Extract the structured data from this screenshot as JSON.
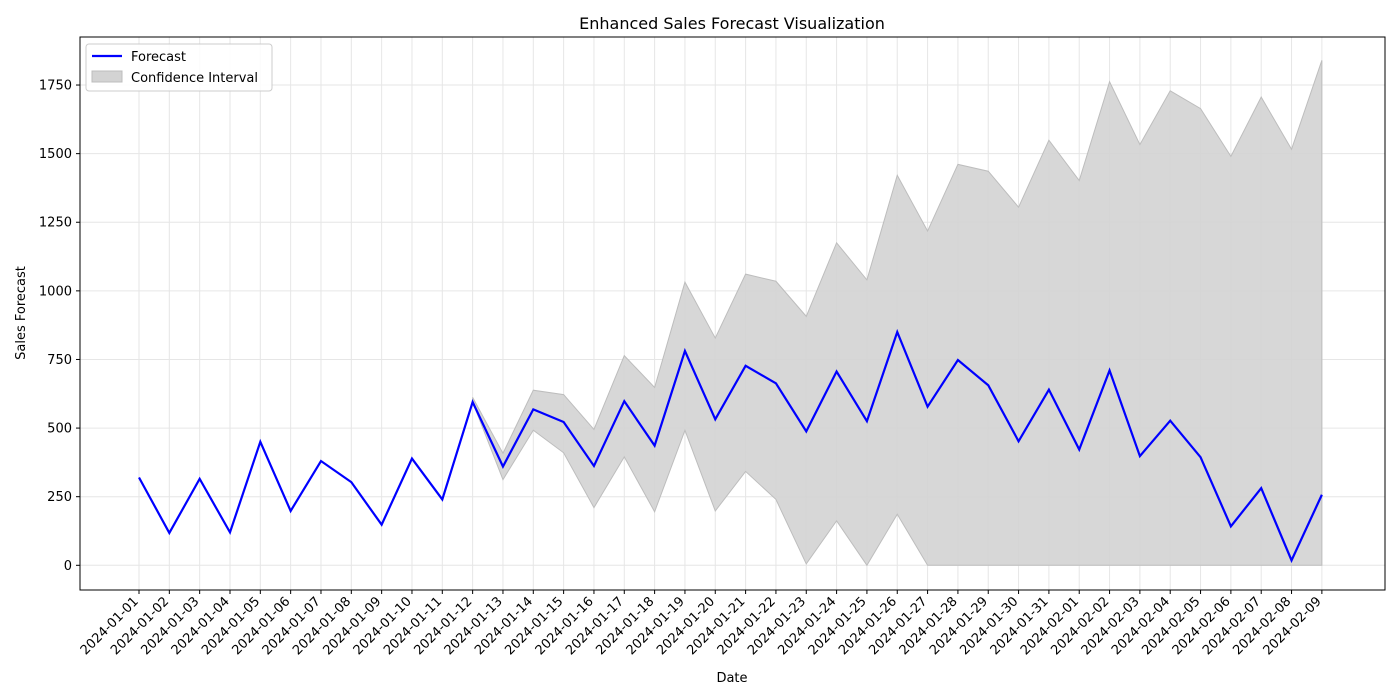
{
  "chart_data": {
    "type": "line",
    "title": "Enhanced Sales Forecast Visualization",
    "xlabel": "Date",
    "ylabel": "Sales Forecast",
    "ylim": [
      -90,
      1925
    ],
    "yticks": [
      0,
      250,
      500,
      750,
      1000,
      1250,
      1500,
      1750
    ],
    "grid": true,
    "legend_position": "top-left",
    "x": [
      "2024-01-01",
      "2024-01-02",
      "2024-01-03",
      "2024-01-04",
      "2024-01-05",
      "2024-01-06",
      "2024-01-07",
      "2024-01-08",
      "2024-01-09",
      "2024-01-10",
      "2024-01-11",
      "2024-01-12",
      "2024-01-13",
      "2024-01-14",
      "2024-01-15",
      "2024-01-16",
      "2024-01-17",
      "2024-01-18",
      "2024-01-19",
      "2024-01-20",
      "2024-01-21",
      "2024-01-22",
      "2024-01-23",
      "2024-01-24",
      "2024-01-25",
      "2024-01-26",
      "2024-01-27",
      "2024-01-28",
      "2024-01-29",
      "2024-01-30",
      "2024-01-31",
      "2024-02-01",
      "2024-02-02",
      "2024-02-03",
      "2024-02-04",
      "2024-02-05",
      "2024-02-06",
      "2024-02-07",
      "2024-02-08",
      "2024-02-09"
    ],
    "series": [
      {
        "name": "Forecast",
        "color": "#0000ff",
        "values": [
          320,
          118,
          315,
          120,
          450,
          198,
          380,
          303,
          148,
          389,
          240,
          595,
          360,
          568,
          522,
          362,
          598,
          436,
          781,
          532,
          727,
          663,
          488,
          706,
          525,
          850,
          578,
          748,
          656,
          452,
          640,
          422,
          710,
          398,
          527,
          394,
          142,
          281,
          18,
          257
        ]
      }
    ],
    "confidence_interval": {
      "name": "Confidence Interval",
      "color": "#d3d3d3",
      "start_index": 11,
      "lower": [
        595,
        312,
        492,
        410,
        210,
        395,
        195,
        492,
        198,
        342,
        240,
        5,
        162,
        0,
        186,
        0,
        0,
        0,
        0,
        0,
        0,
        0,
        0,
        0,
        0,
        0,
        0,
        0,
        0
      ],
      "upper": [
        612,
        408,
        638,
        622,
        495,
        764,
        648,
        1032,
        828,
        1061,
        1035,
        907,
        1175,
        1040,
        1421,
        1218,
        1461,
        1436,
        1305,
        1549,
        1402,
        1762,
        1533,
        1729,
        1664,
        1490,
        1706,
        1516,
        1840
      ]
    }
  }
}
